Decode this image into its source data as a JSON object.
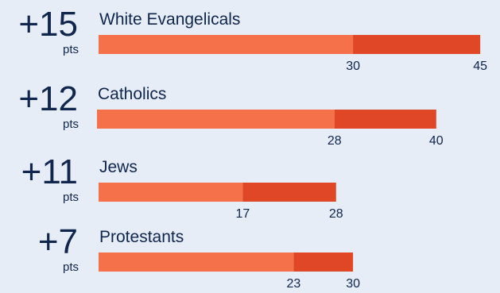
{
  "chart_data": {
    "type": "bar",
    "orientation": "horizontal",
    "stacked_segments": true,
    "grid": false,
    "unit": "pts",
    "colors": {
      "background": "#e6edf6",
      "text": "#10264d",
      "base_segment": "#f47149",
      "increase_segment": "#e04726"
    },
    "rows": [
      {
        "group": "White Evangelicals",
        "change": "+15",
        "unit": "pts",
        "from": 30,
        "to": 45
      },
      {
        "group": "Catholics",
        "change": "+12",
        "unit": "pts",
        "from": 28,
        "to": 40
      },
      {
        "group": "Jews",
        "change": "+11",
        "unit": "pts",
        "from": 17,
        "to": 28
      },
      {
        "group": "Protestants",
        "change": "+7",
        "unit": "pts",
        "from": 23,
        "to": 30
      }
    ]
  }
}
